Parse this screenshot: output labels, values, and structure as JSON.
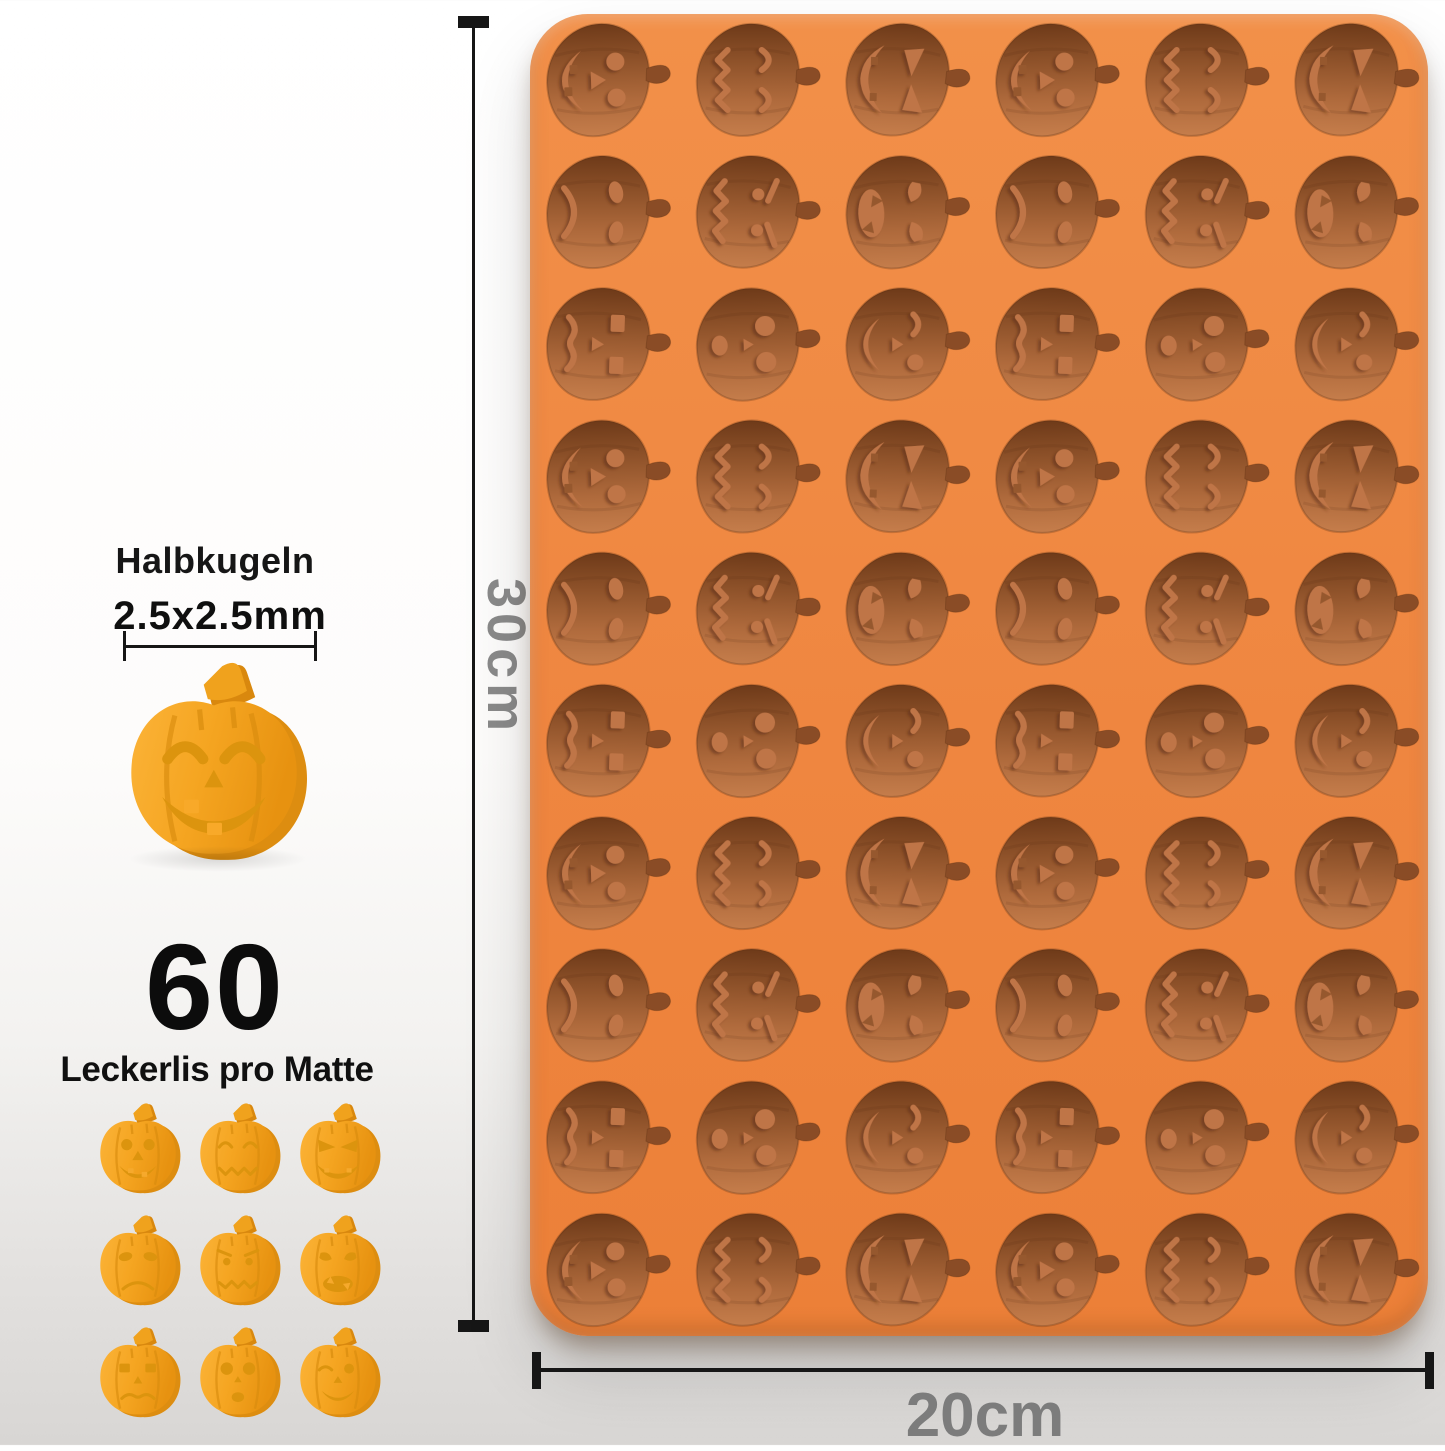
{
  "image_type": "product-render-with-dimensions",
  "info_panel": {
    "cavity_shape_label": "Halbkugeln",
    "cavity_size_label": "2.5x2.5mm",
    "count_value": "60",
    "count_caption": "Leckerlis pro Matte"
  },
  "dimensions": {
    "height_label": "30cm",
    "width_label": "20cm",
    "line_color": "#161616",
    "text_color": "#8a8a8a"
  },
  "mold": {
    "rows": 10,
    "columns": 6,
    "cavity_count": 60,
    "surface_color": "#ee8640",
    "cavity_dark": "#6e3a19",
    "cavity_light": "#c57d4b"
  },
  "sample_pumpkins": {
    "grid_rows": 3,
    "grid_columns": 3,
    "count": 9,
    "body_color": "#f6a92c",
    "face_color": "#dc940e"
  }
}
